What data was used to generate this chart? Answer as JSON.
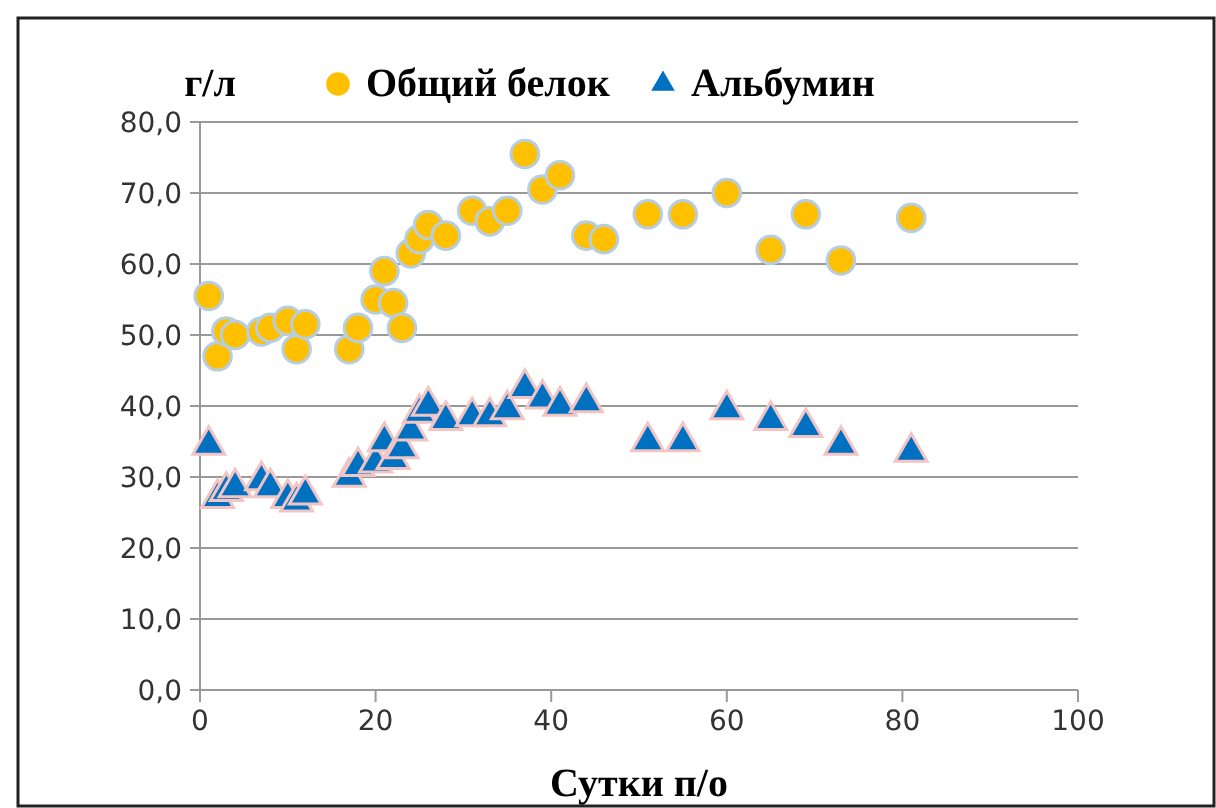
{
  "chart_data": {
    "type": "scatter",
    "ylabel": "г/л",
    "xlabel": "Сутки п/о",
    "legend": "top",
    "grid": "y",
    "xlim": [
      0,
      100
    ],
    "xticks": [
      0,
      20,
      40,
      60,
      80,
      100
    ],
    "ylim": [
      0,
      80
    ],
    "yticks": [
      {
        "value": 0,
        "label": "0,0"
      },
      {
        "value": 10,
        "label": "10,0"
      },
      {
        "value": 20,
        "label": "20,0"
      },
      {
        "value": 30,
        "label": "30,0"
      },
      {
        "value": 40,
        "label": "40,0"
      },
      {
        "value": 50,
        "label": "50,0"
      },
      {
        "value": 60,
        "label": "60,0"
      },
      {
        "value": 70,
        "label": "70,0"
      },
      {
        "value": 80,
        "label": "80,0"
      }
    ],
    "series": [
      {
        "name": "Общий белок",
        "color": "#ffc000",
        "marker": "circle",
        "x": [
          1,
          2,
          3,
          4,
          7,
          8,
          10,
          11,
          12,
          17,
          18,
          20,
          21,
          22,
          23,
          24,
          25,
          26,
          28,
          31,
          33,
          35,
          37,
          39,
          41,
          44,
          46,
          51,
          55,
          60,
          65,
          69,
          73,
          81
        ],
        "values": [
          55.5,
          47,
          50.5,
          50,
          50.5,
          51,
          52,
          48,
          51.5,
          48,
          51,
          55,
          59,
          54.5,
          51,
          61.5,
          63.5,
          65.5,
          64,
          67.5,
          66,
          67.5,
          75.5,
          70.5,
          72.5,
          64,
          63.5,
          67,
          67,
          70,
          62,
          67,
          60.5,
          66.5
        ]
      },
      {
        "name": "Альбумин",
        "color": "#0070c0",
        "marker": "triangle",
        "x": [
          1,
          2,
          3,
          4,
          7,
          8,
          10,
          11,
          12,
          17,
          18,
          20,
          21,
          22,
          23,
          24,
          25,
          26,
          28,
          31,
          33,
          35,
          37,
          39,
          41,
          44,
          51,
          55,
          60,
          65,
          69,
          73,
          81
        ],
        "values": [
          34.5,
          27,
          28,
          28.5,
          29.5,
          28.5,
          27,
          26.5,
          27.5,
          30,
          31.5,
          32,
          35,
          32.5,
          34,
          36.5,
          39,
          40,
          38,
          38.5,
          38.5,
          39.5,
          42.5,
          41,
          40,
          40.5,
          35,
          35,
          39.5,
          38,
          37,
          34.5,
          33.5
        ]
      }
    ]
  }
}
